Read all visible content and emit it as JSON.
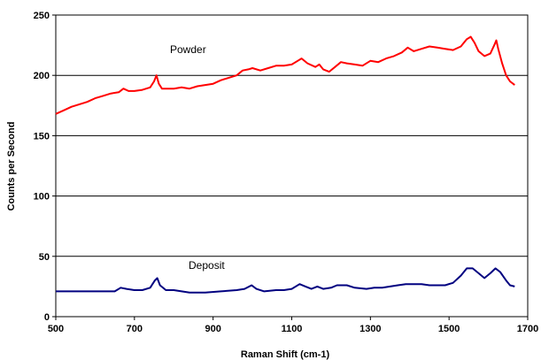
{
  "chart_data": {
    "type": "line",
    "title": "",
    "xlabel": "Raman Shift (cm-1)",
    "ylabel": "Counts per Second",
    "xlim": [
      500,
      1700
    ],
    "ylim": [
      0,
      250
    ],
    "x_ticks": [
      500,
      700,
      900,
      1100,
      1300,
      1500,
      1700
    ],
    "y_ticks": [
      0,
      50,
      100,
      150,
      200,
      250
    ],
    "grid": "horizontal",
    "legend": "none",
    "series": [
      {
        "name": "Powder",
        "color": "#ff0000",
        "points": [
          [
            500,
            168
          ],
          [
            520,
            171
          ],
          [
            540,
            174
          ],
          [
            560,
            176
          ],
          [
            580,
            178
          ],
          [
            600,
            181
          ],
          [
            620,
            183
          ],
          [
            640,
            185
          ],
          [
            660,
            186
          ],
          [
            672,
            189
          ],
          [
            685,
            187
          ],
          [
            700,
            187
          ],
          [
            720,
            188
          ],
          [
            740,
            190
          ],
          [
            750,
            195
          ],
          [
            756,
            200
          ],
          [
            762,
            193
          ],
          [
            770,
            189
          ],
          [
            800,
            189
          ],
          [
            820,
            190
          ],
          [
            840,
            189
          ],
          [
            860,
            191
          ],
          [
            880,
            192
          ],
          [
            900,
            193
          ],
          [
            920,
            196
          ],
          [
            940,
            198
          ],
          [
            960,
            200
          ],
          [
            975,
            204
          ],
          [
            990,
            205
          ],
          [
            1000,
            206
          ],
          [
            1020,
            204
          ],
          [
            1040,
            206
          ],
          [
            1060,
            208
          ],
          [
            1080,
            208
          ],
          [
            1100,
            209
          ],
          [
            1115,
            212
          ],
          [
            1125,
            214
          ],
          [
            1140,
            210
          ],
          [
            1160,
            207
          ],
          [
            1170,
            209
          ],
          [
            1180,
            205
          ],
          [
            1195,
            203
          ],
          [
            1210,
            207
          ],
          [
            1225,
            211
          ],
          [
            1240,
            210
          ],
          [
            1260,
            209
          ],
          [
            1280,
            208
          ],
          [
            1300,
            212
          ],
          [
            1320,
            211
          ],
          [
            1340,
            214
          ],
          [
            1360,
            216
          ],
          [
            1380,
            219
          ],
          [
            1395,
            223
          ],
          [
            1410,
            220
          ],
          [
            1430,
            222
          ],
          [
            1450,
            224
          ],
          [
            1470,
            223
          ],
          [
            1490,
            222
          ],
          [
            1510,
            221
          ],
          [
            1530,
            224
          ],
          [
            1545,
            230
          ],
          [
            1555,
            232
          ],
          [
            1565,
            227
          ],
          [
            1575,
            220
          ],
          [
            1590,
            216
          ],
          [
            1605,
            218
          ],
          [
            1615,
            225
          ],
          [
            1620,
            229
          ],
          [
            1625,
            222
          ],
          [
            1635,
            210
          ],
          [
            1645,
            200
          ],
          [
            1655,
            195
          ],
          [
            1667,
            192
          ]
        ]
      },
      {
        "name": "Deposit",
        "color": "#000080",
        "points": [
          [
            500,
            21
          ],
          [
            550,
            21
          ],
          [
            600,
            21
          ],
          [
            650,
            21
          ],
          [
            665,
            24
          ],
          [
            680,
            23
          ],
          [
            700,
            22
          ],
          [
            720,
            22
          ],
          [
            740,
            24
          ],
          [
            752,
            30
          ],
          [
            758,
            32
          ],
          [
            765,
            26
          ],
          [
            780,
            22
          ],
          [
            800,
            22
          ],
          [
            840,
            20
          ],
          [
            880,
            20
          ],
          [
            920,
            21
          ],
          [
            960,
            22
          ],
          [
            980,
            23
          ],
          [
            998,
            26
          ],
          [
            1010,
            23
          ],
          [
            1030,
            21
          ],
          [
            1060,
            22
          ],
          [
            1080,
            22
          ],
          [
            1100,
            23
          ],
          [
            1120,
            27
          ],
          [
            1135,
            25
          ],
          [
            1150,
            23
          ],
          [
            1165,
            25
          ],
          [
            1180,
            23
          ],
          [
            1200,
            24
          ],
          [
            1215,
            26
          ],
          [
            1240,
            26
          ],
          [
            1260,
            24
          ],
          [
            1290,
            23
          ],
          [
            1310,
            24
          ],
          [
            1330,
            24
          ],
          [
            1350,
            25
          ],
          [
            1370,
            26
          ],
          [
            1390,
            27
          ],
          [
            1410,
            27
          ],
          [
            1430,
            27
          ],
          [
            1450,
            26
          ],
          [
            1470,
            26
          ],
          [
            1490,
            26
          ],
          [
            1510,
            28
          ],
          [
            1530,
            34
          ],
          [
            1545,
            40
          ],
          [
            1560,
            40
          ],
          [
            1575,
            36
          ],
          [
            1590,
            32
          ],
          [
            1605,
            36
          ],
          [
            1618,
            40
          ],
          [
            1630,
            37
          ],
          [
            1645,
            30
          ],
          [
            1655,
            26
          ],
          [
            1667,
            25
          ]
        ]
      }
    ]
  }
}
